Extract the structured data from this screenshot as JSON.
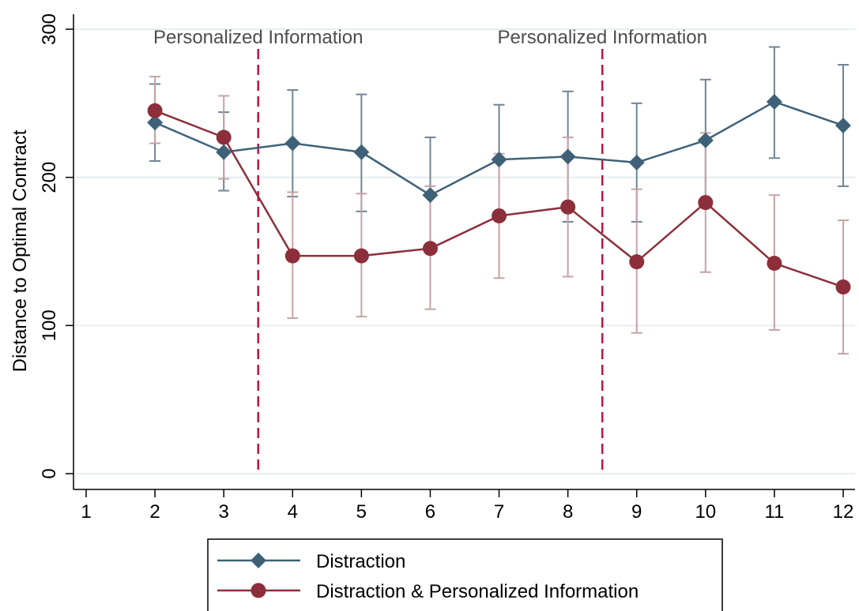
{
  "chart_data": {
    "type": "line",
    "title": "",
    "xlabel": "",
    "ylabel": "Distance to Optimal Contract",
    "xlim": [
      1,
      12
    ],
    "ylim": [
      0,
      300
    ],
    "x_ticks": [
      1,
      2,
      3,
      4,
      5,
      6,
      7,
      8,
      9,
      10,
      11,
      12
    ],
    "y_ticks": [
      0,
      100,
      200,
      300
    ],
    "grid": "horizontal",
    "series": [
      {
        "name": "Distraction",
        "marker": "diamond",
        "color": "#3e6178",
        "errcolor": "#6f8595",
        "x": [
          2,
          3,
          4,
          5,
          6,
          7,
          8,
          9,
          10,
          11,
          12
        ],
        "y": [
          237,
          217,
          223,
          217,
          188,
          212,
          214,
          210,
          225,
          251,
          235
        ],
        "lo": [
          211,
          191,
          187,
          177,
          150,
          176,
          170,
          170,
          184,
          213,
          194
        ],
        "hi": [
          263,
          244,
          259,
          256,
          227,
          249,
          258,
          250,
          266,
          288,
          276
        ]
      },
      {
        "name": "Distraction & Personalized Information",
        "marker": "circle",
        "color": "#8c2f3a",
        "errcolor": "#c4a3a6",
        "x": [
          2,
          3,
          4,
          5,
          6,
          7,
          8,
          9,
          10,
          11,
          12
        ],
        "y": [
          245,
          227,
          147,
          147,
          152,
          174,
          180,
          143,
          183,
          142,
          126
        ],
        "lo": [
          223,
          199,
          105,
          106,
          111,
          132,
          133,
          95,
          136,
          97,
          81
        ],
        "hi": [
          268,
          255,
          190,
          189,
          194,
          216,
          227,
          192,
          230,
          188,
          171
        ]
      }
    ],
    "vlines": [
      3.5,
      8.5
    ],
    "vline_color": "#c2123d",
    "annotations": [
      {
        "text": "Personalized Information",
        "x": 3.5
      },
      {
        "text": "Personalized Information",
        "x": 8.5
      }
    ],
    "legend": "bottom-center"
  }
}
